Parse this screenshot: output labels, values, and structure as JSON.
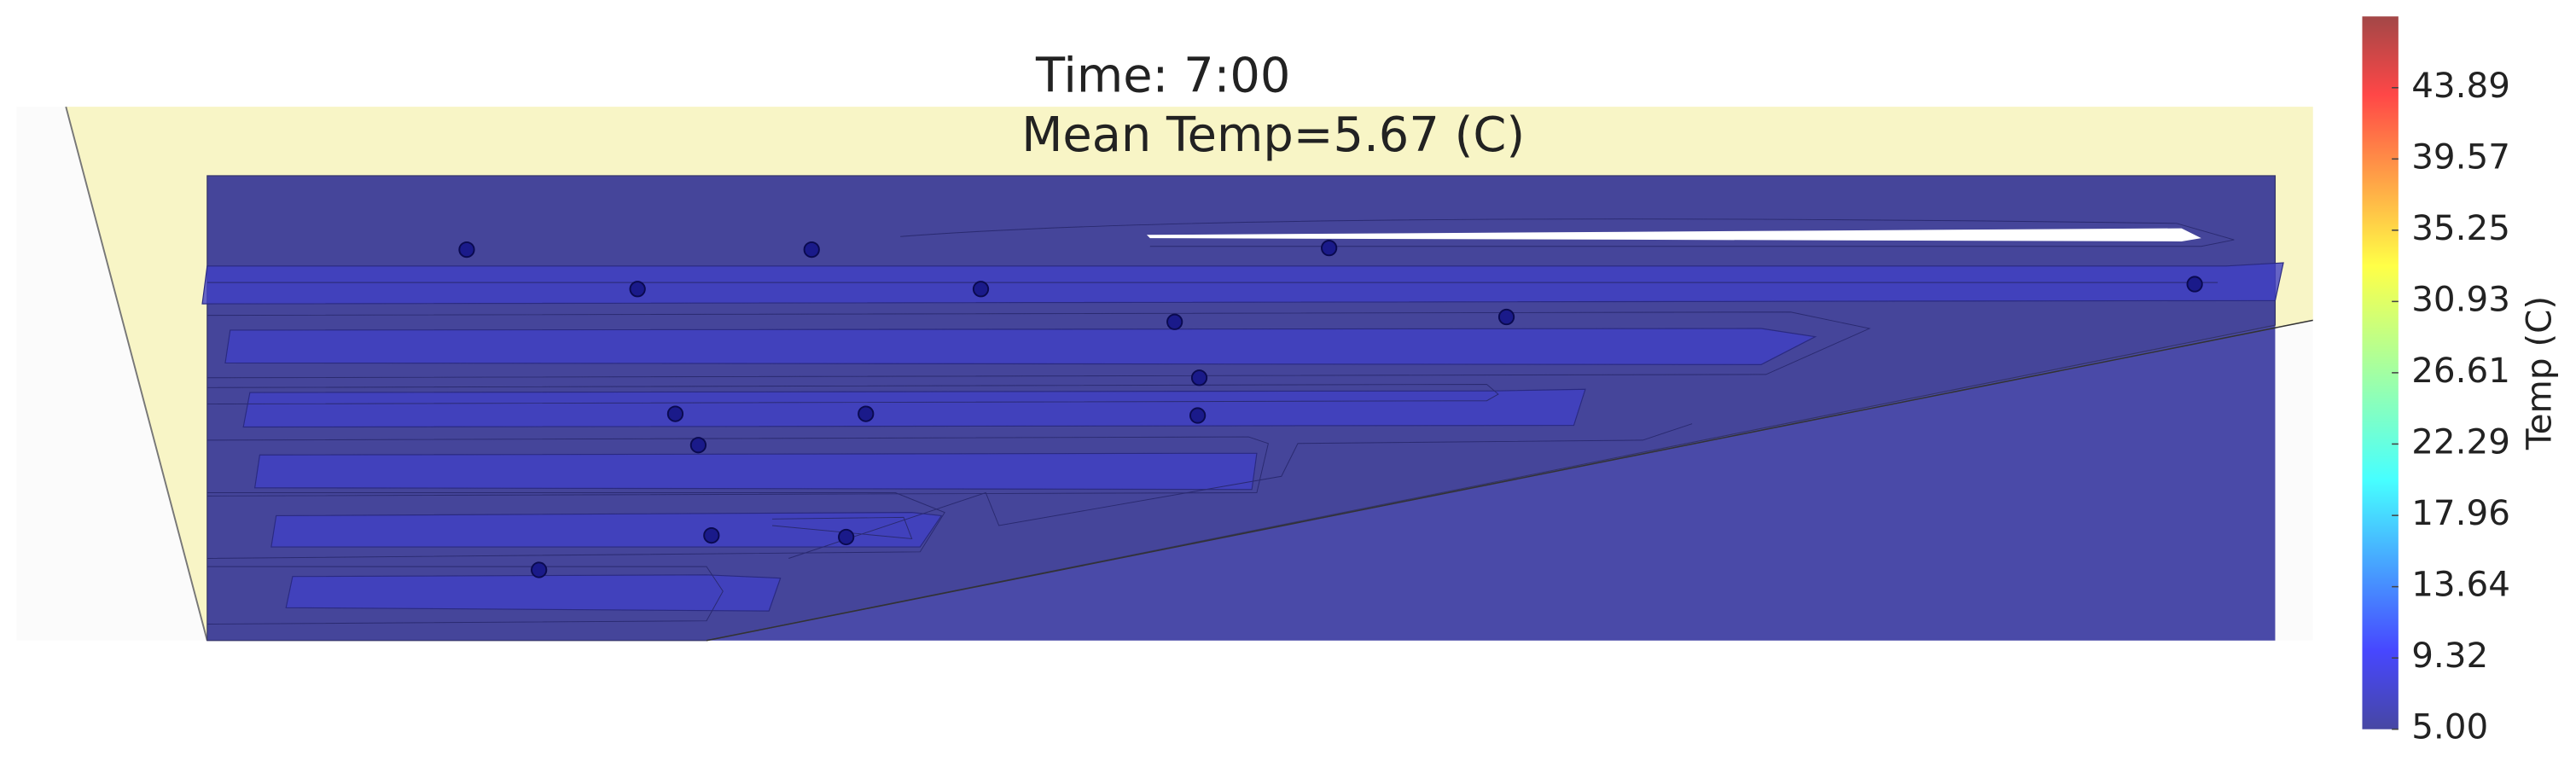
{
  "chart_data": {
    "type": "contour",
    "title": "Time: 7:00",
    "subtitle": "Mean Temp=5.67 (C)",
    "colorbar_label": "Temp (C)",
    "colormap": "jet",
    "clim": [
      5,
      48.21
    ],
    "colorbar_ticks": [
      {
        "value": 5,
        "label": "5.00"
      },
      9.32,
      13.64,
      17.96,
      22.29,
      26.61,
      30.93,
      35.25,
      39.57,
      43.89
    ]
  }
}
